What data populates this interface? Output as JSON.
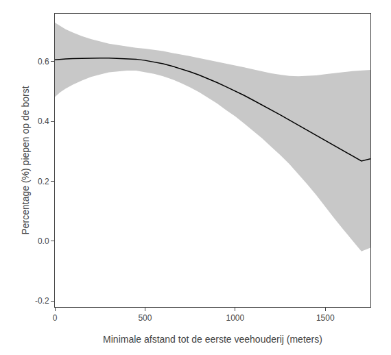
{
  "chart_data": {
    "type": "line",
    "xlabel": "Minimale afstand tot de eerste veehouderij (meters)",
    "ylabel": "Percentage (%) piepen op de borst",
    "x": [
      0,
      30,
      60,
      100,
      150,
      200,
      250,
      300,
      350,
      400,
      450,
      500,
      550,
      600,
      650,
      700,
      750,
      800,
      850,
      900,
      950,
      1000,
      1050,
      1100,
      1150,
      1200,
      1250,
      1300,
      1350,
      1400,
      1450,
      1500,
      1550,
      1600,
      1650,
      1700,
      1750
    ],
    "series": [
      {
        "type": "band",
        "color": "#c8c8c8",
        "upper": [
          0.73,
          0.718,
          0.708,
          0.697,
          0.685,
          0.675,
          0.667,
          0.66,
          0.655,
          0.65,
          0.646,
          0.643,
          0.639,
          0.635,
          0.629,
          0.624,
          0.618,
          0.612,
          0.606,
          0.6,
          0.594,
          0.587,
          0.581,
          0.574,
          0.567,
          0.561,
          0.556,
          0.552,
          0.551,
          0.552,
          0.554,
          0.558,
          0.562,
          0.565,
          0.568,
          0.57,
          0.572
        ],
        "lower": [
          0.482,
          0.498,
          0.51,
          0.523,
          0.537,
          0.549,
          0.557,
          0.564,
          0.567,
          0.57,
          0.57,
          0.565,
          0.559,
          0.551,
          0.541,
          0.528,
          0.514,
          0.498,
          0.48,
          0.46,
          0.438,
          0.417,
          0.393,
          0.368,
          0.343,
          0.315,
          0.288,
          0.258,
          0.225,
          0.19,
          0.154,
          0.114,
          0.076,
          0.039,
          0.002,
          -0.034,
          -0.022
        ]
      },
      {
        "type": "line",
        "color": "#000000",
        "values": [
          0.606,
          0.608,
          0.609,
          0.61,
          0.611,
          0.612,
          0.612,
          0.612,
          0.611,
          0.61,
          0.608,
          0.604,
          0.599,
          0.593,
          0.585,
          0.576,
          0.566,
          0.555,
          0.543,
          0.53,
          0.516,
          0.502,
          0.487,
          0.471,
          0.455,
          0.438,
          0.422,
          0.405,
          0.388,
          0.371,
          0.354,
          0.336,
          0.319,
          0.302,
          0.285,
          0.268,
          0.275
        ]
      }
    ],
    "xlim": [
      0,
      1750
    ],
    "ylim": [
      -0.22,
      0.76
    ],
    "xticks": [
      0,
      500,
      1000,
      1500
    ],
    "yticks": [
      -0.2,
      {
        "value": 0.0,
        "label": "0.0"
      },
      0.2,
      0.4,
      0.6
    ],
    "grid": false
  }
}
